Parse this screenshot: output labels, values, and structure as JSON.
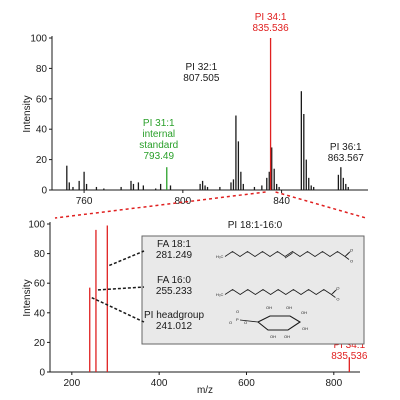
{
  "colors": {
    "black": "#1a1a1a",
    "red": "#e02020",
    "green": "#2aa02a",
    "inset_fill": "#e9e9e9",
    "inset_stroke": "#666666"
  },
  "chart_data": [
    {
      "type": "bar",
      "title": "",
      "xlabel": "",
      "ylabel": "Intensity",
      "xlim": [
        747,
        875
      ],
      "ylim": [
        0,
        100
      ],
      "x_ticks": [
        760,
        800,
        840
      ],
      "y_ticks": [
        0,
        20,
        40,
        60,
        80,
        100
      ],
      "grid": false,
      "peaks": [
        {
          "mz": 753.0,
          "i": 16,
          "color": "black"
        },
        {
          "mz": 754.0,
          "i": 5,
          "color": "black"
        },
        {
          "mz": 755.5,
          "i": 2,
          "color": "black"
        },
        {
          "mz": 758.0,
          "i": 6,
          "color": "black"
        },
        {
          "mz": 760.0,
          "i": 12,
          "color": "black"
        },
        {
          "mz": 761.0,
          "i": 4,
          "color": "black"
        },
        {
          "mz": 765.0,
          "i": 2,
          "color": "black"
        },
        {
          "mz": 768.0,
          "i": 1,
          "color": "black"
        },
        {
          "mz": 775.0,
          "i": 2,
          "color": "black"
        },
        {
          "mz": 779.0,
          "i": 6,
          "color": "black"
        },
        {
          "mz": 780.0,
          "i": 4,
          "color": "black"
        },
        {
          "mz": 782.0,
          "i": 5,
          "color": "black"
        },
        {
          "mz": 784.0,
          "i": 3,
          "color": "black"
        },
        {
          "mz": 789.0,
          "i": 1,
          "color": "black"
        },
        {
          "mz": 791.0,
          "i": 4,
          "color": "black"
        },
        {
          "mz": 793.49,
          "i": 15,
          "color": "green"
        },
        {
          "mz": 795.0,
          "i": 3,
          "color": "black"
        },
        {
          "mz": 807.0,
          "i": 4,
          "color": "black"
        },
        {
          "mz": 808.0,
          "i": 6,
          "color": "black"
        },
        {
          "mz": 809.0,
          "i": 3,
          "color": "black"
        },
        {
          "mz": 810.0,
          "i": 2,
          "color": "black"
        },
        {
          "mz": 815.0,
          "i": 2,
          "color": "black"
        },
        {
          "mz": 819.5,
          "i": 5,
          "color": "black"
        },
        {
          "mz": 820.5,
          "i": 7,
          "color": "black"
        },
        {
          "mz": 821.5,
          "i": 49,
          "color": "black"
        },
        {
          "mz": 822.5,
          "i": 32,
          "color": "black"
        },
        {
          "mz": 823.5,
          "i": 12,
          "color": "black"
        },
        {
          "mz": 824.5,
          "i": 4,
          "color": "black"
        },
        {
          "mz": 829.0,
          "i": 2,
          "color": "black"
        },
        {
          "mz": 832.0,
          "i": 3,
          "color": "black"
        },
        {
          "mz": 834.0,
          "i": 8,
          "color": "black"
        },
        {
          "mz": 835.0,
          "i": 12,
          "color": "black"
        },
        {
          "mz": 836.0,
          "i": 28,
          "color": "black"
        },
        {
          "mz": 837.0,
          "i": 14,
          "color": "black"
        },
        {
          "mz": 838.0,
          "i": 4,
          "color": "black"
        },
        {
          "mz": 839.0,
          "i": 2,
          "color": "black"
        },
        {
          "mz": 848.0,
          "i": 65,
          "color": "black"
        },
        {
          "mz": 849.0,
          "i": 50,
          "color": "black"
        },
        {
          "mz": 850.0,
          "i": 20,
          "color": "black"
        },
        {
          "mz": 851.0,
          "i": 8,
          "color": "black"
        },
        {
          "mz": 852.0,
          "i": 3,
          "color": "black"
        },
        {
          "mz": 853.0,
          "i": 2,
          "color": "black"
        },
        {
          "mz": 863.0,
          "i": 10,
          "color": "black"
        },
        {
          "mz": 864.0,
          "i": 15,
          "color": "black"
        },
        {
          "mz": 865.0,
          "i": 8,
          "color": "black"
        },
        {
          "mz": 866.0,
          "i": 4,
          "color": "black"
        },
        {
          "mz": 867.0,
          "i": 2,
          "color": "black"
        }
      ],
      "annotations": [
        {
          "lines": [
            "PI 34:1",
            "835.536"
          ],
          "mz": 835.536,
          "i": 100,
          "color": "red"
        },
        {
          "lines": [
            "PI 32:1",
            "807.505"
          ],
          "mz": 807.505,
          "i": 49,
          "color": "black"
        },
        {
          "lines": [
            "PI 31:1",
            "internal",
            "standard",
            "793.49"
          ],
          "mz": 793.49,
          "i": 15,
          "color": "green"
        },
        {
          "lines": [
            "PI 36:1",
            "863.567"
          ],
          "mz": 863.567,
          "i": 15,
          "color": "black"
        }
      ]
    },
    {
      "type": "bar",
      "title": "PI 18:1-16:0",
      "xlabel": "m/z",
      "ylabel": "Intensity",
      "xlim": [
        150,
        860
      ],
      "ylim": [
        0,
        100
      ],
      "x_ticks": [
        200,
        400,
        600,
        800
      ],
      "y_ticks": [
        0,
        20,
        40,
        60,
        80,
        100
      ],
      "grid": false,
      "peaks": [
        {
          "mz": 241.012,
          "i": 57
        },
        {
          "mz": 255.233,
          "i": 96
        },
        {
          "mz": 281.249,
          "i": 99
        },
        {
          "mz": 835.536,
          "i": 10
        }
      ],
      "fragments": [
        {
          "name": "FA 18:1",
          "mz_label": "281.249",
          "mz": 281.249,
          "structure": "fa181"
        },
        {
          "name": "FA 16:0",
          "mz_label": "255.233",
          "mz": 255.233,
          "structure": "fa160"
        },
        {
          "name": "PI headgroup",
          "mz_label": "241.012",
          "mz": 241.012,
          "structure": "inositol"
        }
      ],
      "precursor": {
        "lines": [
          "PI 34:1",
          "835.536"
        ],
        "mz": 835.536
      }
    }
  ]
}
